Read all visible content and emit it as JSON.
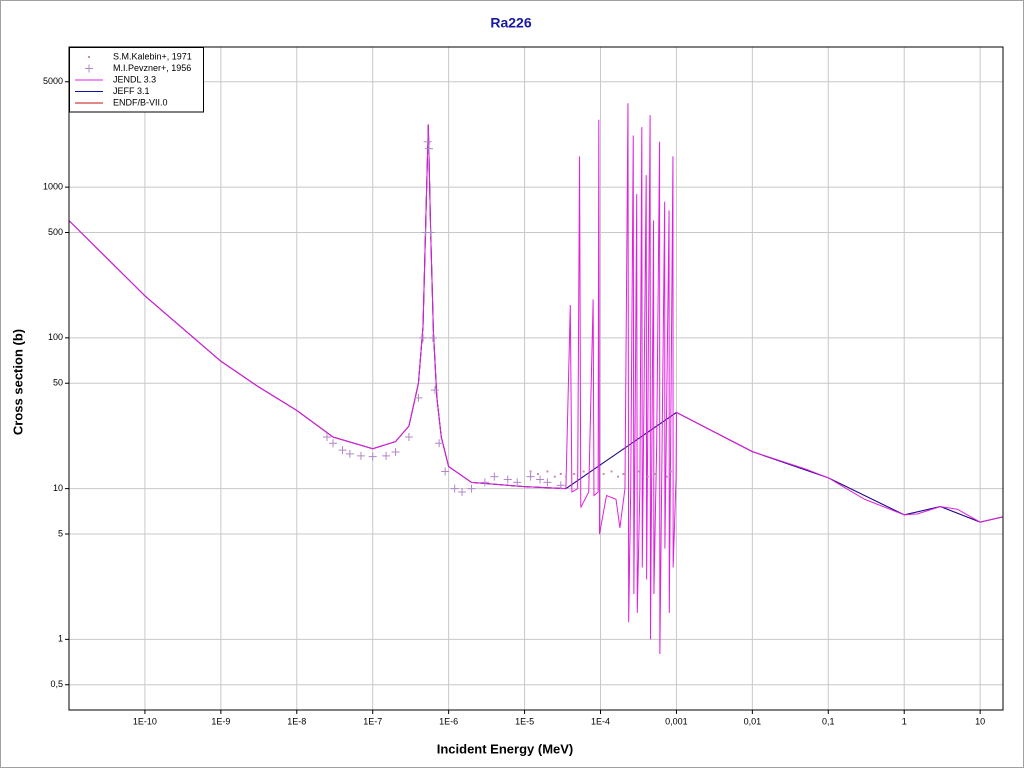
{
  "chart_data": {
    "type": "line",
    "title": "Ra226",
    "x_label": "Incident Energy (MeV)",
    "y_label": "Cross section (b)",
    "xscale": "log",
    "yscale": "log",
    "grid": true,
    "legend": "top-left",
    "xlim": [
      1e-11,
      20
    ],
    "ylim": [
      0.34,
      8500
    ],
    "xticks": [
      {
        "value": 1e-10,
        "label": "1E-10"
      },
      {
        "value": 1e-09,
        "label": "1E-9"
      },
      {
        "value": 1e-08,
        "label": "1E-8"
      },
      {
        "value": 1e-07,
        "label": "1E-7"
      },
      {
        "value": 1e-06,
        "label": "1E-6"
      },
      {
        "value": 1e-05,
        "label": "1E-5"
      },
      {
        "value": 0.0001,
        "label": "1E-4"
      },
      {
        "value": 0.001,
        "label": "0,001"
      },
      {
        "value": 0.01,
        "label": "0,01"
      },
      {
        "value": 0.1,
        "label": "0,1"
      },
      1,
      10
    ],
    "yticks": [
      {
        "value": 0.5,
        "label": "0,5"
      },
      1,
      5,
      10,
      50,
      100,
      500,
      1000,
      5000
    ],
    "series": [
      {
        "name": "S.M.Kalebin+, 1971",
        "color": "#c090b8",
        "style": "dot",
        "x": [
          1.2e-05,
          1.5e-05,
          2e-05,
          2.5e-05,
          3e-05,
          3.5e-05,
          4.5e-05,
          6e-05,
          7e-05,
          0.00011,
          0.00014,
          0.00017,
          0.0002,
          0.00032,
          0.00042,
          0.00052,
          0.00075,
          0.00085
        ],
        "values": [
          13,
          12.5,
          13,
          12,
          12.5,
          12,
          12.5,
          13,
          12,
          12.5,
          13,
          12,
          12.5,
          13,
          12,
          12.5,
          12,
          13
        ]
      },
      {
        "name": "M.I.Pevzner+, 1956",
        "color": "#b088c8",
        "style": "plus",
        "x": [
          2.5e-08,
          3e-08,
          4e-08,
          5e-08,
          7e-08,
          1e-07,
          1.5e-07,
          2e-07,
          3e-07,
          4e-07,
          4.6e-07,
          5e-07,
          5.3e-07,
          5.5e-07,
          5.8e-07,
          6.2e-07,
          6.6e-07,
          7.5e-07,
          9e-07,
          1.2e-06,
          1.5e-06,
          2e-06,
          3e-06,
          4e-06,
          6e-06,
          8e-06,
          1.2e-05,
          1.6e-05,
          2e-05,
          3e-05
        ],
        "values": [
          22,
          20,
          18,
          17,
          16.5,
          16.3,
          16.5,
          17.5,
          22,
          40,
          100,
          500,
          2000,
          1800,
          500,
          100,
          45,
          20,
          13,
          10,
          9.5,
          10,
          11,
          12,
          11.5,
          11,
          12,
          11.5,
          11,
          10.5
        ]
      },
      {
        "name": "JENDL 3.3",
        "color": "#e020e0",
        "style": "line",
        "x": [
          1e-11,
          1e-10,
          1e-09,
          3e-09,
          1e-08,
          3e-08,
          1e-07,
          2e-07,
          3e-07,
          4e-07,
          4.6e-07,
          5e-07,
          5.4e-07,
          5.8e-07,
          6.3e-07,
          7e-07,
          8e-07,
          1e-06,
          2e-06,
          1e-05,
          3.5e-05,
          4e-05,
          4.2e-05,
          5e-05,
          5.3e-05,
          5.5e-05,
          7e-05,
          8e-05,
          8.2e-05,
          9.3e-05,
          9.5e-05,
          9.7e-05,
          0.00012,
          0.00016,
          0.00018,
          0.00021,
          0.00023,
          0.000235,
          0.00025,
          0.00027,
          0.000275,
          0.0003,
          0.000305,
          0.00033,
          0.00035,
          0.000355,
          0.0004,
          0.000405,
          0.00045,
          0.000455,
          0.0005,
          0.000505,
          0.00055,
          0.0006,
          0.000605,
          0.0007,
          0.000705,
          0.0008,
          0.000805,
          0.0009,
          0.000905,
          0.00099,
          0.001001,
          0.01,
          0.05,
          0.1,
          0.3,
          1,
          1.5,
          3,
          5,
          10,
          20
        ],
        "values": [
          600,
          190,
          70,
          48,
          33,
          22,
          18.4,
          20.5,
          26,
          50,
          120,
          600,
          2600,
          500,
          110,
          40,
          22,
          14,
          11,
          10.3,
          10,
          165,
          9.5,
          10,
          1600,
          7.5,
          9.5,
          180,
          9,
          9.5,
          2800,
          5,
          9,
          8.5,
          5.5,
          10,
          3600,
          1.3,
          10,
          2200,
          2,
          900,
          1.5,
          10,
          2500,
          3,
          1200,
          2.5,
          3000,
          1,
          600,
          2,
          20,
          2000,
          0.8,
          800,
          4,
          700,
          1.5,
          1600,
          3,
          12,
          32,
          17.6,
          13.5,
          11.8,
          8.5,
          6.7,
          6.8,
          7.6,
          7.3,
          6,
          6.5
        ]
      },
      {
        "name": "JEFF 3.1",
        "color": "#1010a0",
        "style": "line",
        "x": [
          1e-11,
          1e-10,
          1e-09,
          3e-09,
          1e-08,
          3e-08,
          1e-07,
          2e-07,
          3e-07,
          4e-07,
          4.6e-07,
          5e-07,
          5.4e-07,
          5.8e-07,
          6.3e-07,
          7e-07,
          8e-07,
          1e-06,
          2e-06,
          1e-05,
          3.5e-05,
          0.001001,
          0.01,
          0.1,
          1,
          3,
          10,
          20
        ],
        "values": [
          600,
          190,
          70,
          48,
          33,
          22,
          18.4,
          20.5,
          26,
          50,
          120,
          600,
          2600,
          500,
          110,
          40,
          22,
          14,
          11,
          10.3,
          10,
          32,
          17.6,
          11.8,
          6.7,
          7.6,
          6,
          6.5
        ]
      },
      {
        "name": "ENDF/B-VII.0",
        "color": "#c01010",
        "style": "line",
        "x": [
          1e-11,
          1e-10,
          1e-09,
          3e-09,
          1e-08,
          3e-08,
          1e-07,
          2e-07,
          3e-07,
          4e-07,
          4.6e-07,
          5e-07,
          5.4e-07,
          5.8e-07,
          6.3e-07,
          7e-07,
          8e-07,
          1e-06,
          2e-06,
          1e-05,
          3.5e-05,
          0.001001,
          0.01,
          0.1,
          1,
          3,
          10,
          20
        ],
        "values": [
          600,
          190,
          70,
          48,
          33,
          22,
          18.4,
          20.5,
          26,
          50,
          120,
          600,
          2600,
          500,
          110,
          40,
          22,
          14,
          11,
          10.3,
          10,
          32,
          17.6,
          11.8,
          6.7,
          7.6,
          6,
          6.5
        ]
      }
    ]
  }
}
